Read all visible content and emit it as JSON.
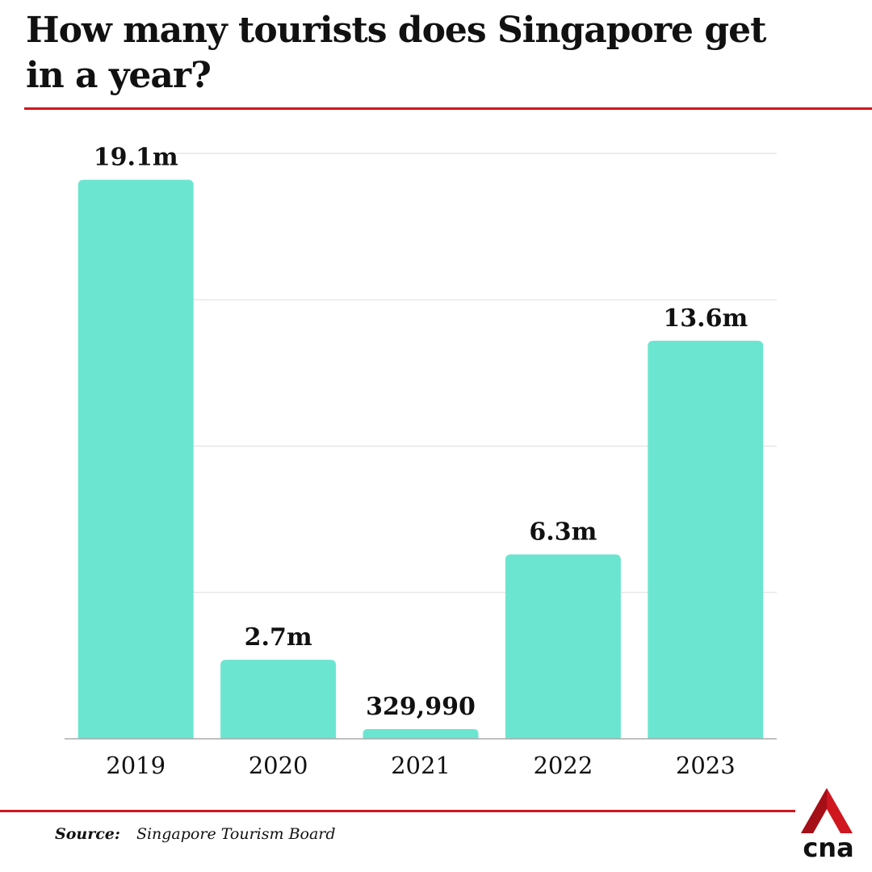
{
  "title": "How many tourists does Singapore get in a year?",
  "source": {
    "label": "Source:",
    "text": "Singapore Tourism Board"
  },
  "logo_text": "cna",
  "colors": {
    "bar": "#6ce5d0",
    "accent": "#d0161f",
    "grid": "#dddddd",
    "axis": "#aaaaaa",
    "text": "#111111"
  },
  "chart_data": {
    "type": "bar",
    "categories": [
      "2019",
      "2020",
      "2021",
      "2022",
      "2023"
    ],
    "values": [
      19100000,
      2700000,
      329990,
      6300000,
      13600000
    ],
    "value_labels": [
      "19.1m",
      "2.7m",
      "329,990",
      "6.3m",
      "13.6m"
    ],
    "title": "How many tourists does Singapore get in a year?",
    "xlabel": "",
    "ylabel": "",
    "ylim": [
      0,
      20000000
    ],
    "grid": true,
    "legend": "none"
  }
}
